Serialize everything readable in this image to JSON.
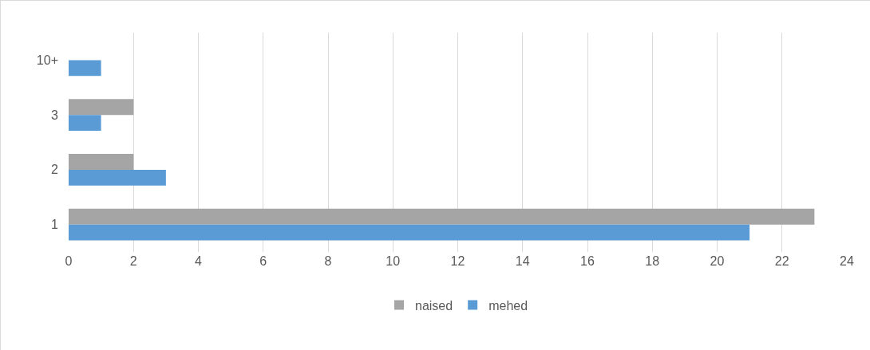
{
  "chart_data": {
    "type": "bar",
    "orientation": "horizontal",
    "categories": [
      "10+",
      "3",
      "2",
      "1"
    ],
    "series": [
      {
        "name": "naised",
        "color": "#a5a5a5",
        "values": [
          0,
          2,
          2,
          23
        ]
      },
      {
        "name": "mehed",
        "color": "#5b9bd5",
        "values": [
          1,
          1,
          3,
          21
        ]
      }
    ],
    "xlim": [
      0,
      24
    ],
    "xticks": [
      0,
      2,
      4,
      6,
      8,
      10,
      12,
      14,
      16,
      18,
      20,
      22,
      24
    ],
    "grid": "x",
    "legend": "bottom"
  }
}
